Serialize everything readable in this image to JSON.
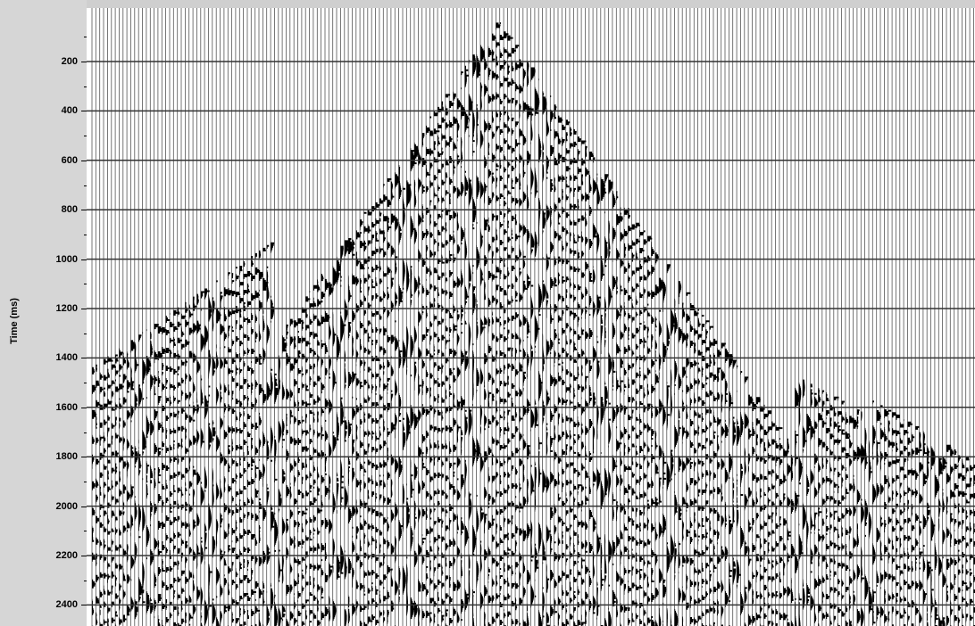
{
  "axis": {
    "ylabel": "Time (ms)",
    "tick_labels": [
      "200",
      "400",
      "600",
      "800",
      "1000",
      "1200",
      "1400",
      "1600",
      "1800",
      "2000",
      "2200",
      "2400"
    ]
  },
  "colors": {
    "axis_panel": "#d6d6d6",
    "trace": "#000000",
    "background": "#ffffff",
    "gridline": "#333333"
  }
}
